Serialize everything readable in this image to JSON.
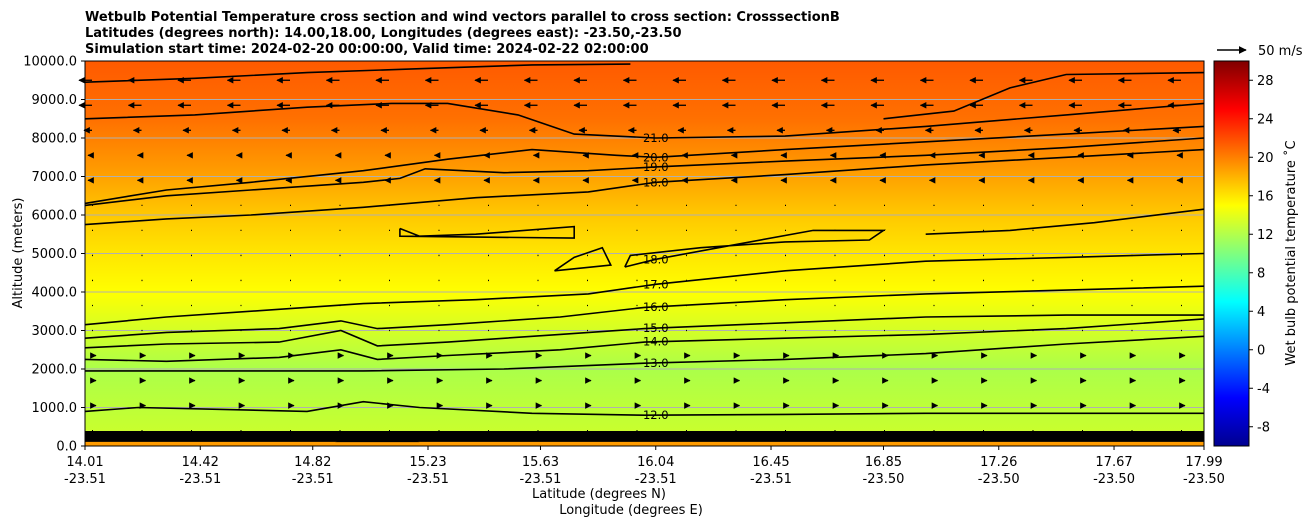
{
  "chart_data": {
    "type": "heatmap",
    "title_lines": [
      "Wetbulb Potential Temperature cross section and wind vectors parallel to cross section: CrosssectionB",
      "Latitudes (degrees north): 14.00,18.00, Longitudes (degrees east): -23.50,-23.50",
      "Simulation start time: 2024-02-20 00:00:00, Valid time: 2024-02-22 02:00:00"
    ],
    "ylabel": "Altitude (meters)",
    "xlabel_lat": "Latitude (degrees N)",
    "xlabel_lon": "Longitude (degrees E)",
    "ylim": [
      0,
      10000
    ],
    "y_ticks": [
      "0.0",
      "1000.0",
      "2000.0",
      "3000.0",
      "4000.0",
      "5000.0",
      "6000.0",
      "7000.0",
      "8000.0",
      "9000.0",
      "10000.0"
    ],
    "y_tick_values": [
      0,
      1000,
      2000,
      3000,
      4000,
      5000,
      6000,
      7000,
      8000,
      9000,
      10000
    ],
    "xlim": [
      14.01,
      17.99
    ],
    "x_tick_values": [
      14.01,
      14.42,
      14.82,
      15.23,
      15.63,
      16.04,
      16.45,
      16.85,
      17.26,
      17.67,
      17.99
    ],
    "x_tick_lat": [
      "14.01",
      "14.42",
      "14.82",
      "15.23",
      "15.63",
      "16.04",
      "16.45",
      "16.85",
      "17.26",
      "17.67",
      "17.99"
    ],
    "x_tick_lon": [
      "-23.51",
      "-23.51",
      "-23.51",
      "-23.51",
      "-23.51",
      "-23.51",
      "-23.51",
      "-23.50",
      "-23.50",
      "-23.50",
      "-23.50"
    ],
    "grid": true,
    "colorbar": {
      "label": "Wet bulb potential temperature ˚C",
      "range": [
        -10,
        30
      ],
      "ticks": [
        "-8",
        "-4",
        "0",
        "4",
        "8",
        "12",
        "16",
        "20",
        "24",
        "28"
      ],
      "tick_values": [
        -8,
        -4,
        0,
        4,
        8,
        12,
        16,
        20,
        24,
        28
      ],
      "colormap": "jet"
    },
    "reference_vector_label": "50 m/s",
    "contours": [
      {
        "level": 12,
        "label": "12.0",
        "points": [
          [
            14.01,
            900
          ],
          [
            14.2,
            1000
          ],
          [
            14.5,
            950
          ],
          [
            14.8,
            900
          ],
          [
            15.0,
            1150
          ],
          [
            15.2,
            1000
          ],
          [
            15.6,
            850
          ],
          [
            16.0,
            800
          ],
          [
            16.5,
            820
          ],
          [
            17.0,
            850
          ],
          [
            17.5,
            850
          ],
          [
            17.99,
            850
          ]
        ]
      },
      {
        "level": 13,
        "label": "13.0",
        "points": [
          [
            14.01,
            1950
          ],
          [
            14.5,
            1950
          ],
          [
            15.0,
            1950
          ],
          [
            15.5,
            2000
          ],
          [
            16.0,
            2150
          ],
          [
            16.5,
            2250
          ],
          [
            17.0,
            2400
          ],
          [
            17.5,
            2650
          ],
          [
            17.99,
            2850
          ]
        ]
      },
      {
        "level": 14,
        "label": "14.0",
        "points": [
          [
            14.01,
            2250
          ],
          [
            14.3,
            2200
          ],
          [
            14.7,
            2300
          ],
          [
            14.92,
            2500
          ],
          [
            15.05,
            2250
          ],
          [
            15.3,
            2350
          ],
          [
            15.7,
            2500
          ],
          [
            16.0,
            2700
          ],
          [
            16.5,
            2800
          ],
          [
            17.0,
            2900
          ],
          [
            17.5,
            3050
          ],
          [
            17.99,
            3300
          ]
        ]
      },
      {
        "level": 15,
        "label": "15.0",
        "points": [
          [
            14.01,
            2550
          ],
          [
            14.3,
            2650
          ],
          [
            14.7,
            2700
          ],
          [
            14.92,
            3000
          ],
          [
            15.05,
            2600
          ],
          [
            15.3,
            2700
          ],
          [
            15.7,
            2900
          ],
          [
            16.0,
            3050
          ],
          [
            16.5,
            3200
          ],
          [
            17.0,
            3350
          ],
          [
            17.5,
            3400
          ],
          [
            17.99,
            3400
          ]
        ]
      },
      {
        "level": 16,
        "label": "16.0",
        "points": [
          [
            14.01,
            2800
          ],
          [
            14.3,
            2950
          ],
          [
            14.7,
            3050
          ],
          [
            14.92,
            3250
          ],
          [
            15.05,
            3050
          ],
          [
            15.3,
            3150
          ],
          [
            15.7,
            3350
          ],
          [
            16.0,
            3600
          ],
          [
            16.5,
            3800
          ],
          [
            17.0,
            3950
          ],
          [
            17.5,
            4050
          ],
          [
            17.99,
            4150
          ]
        ]
      },
      {
        "level": 17,
        "label": "17.0",
        "points": [
          [
            14.01,
            3150
          ],
          [
            14.3,
            3350
          ],
          [
            14.7,
            3550
          ],
          [
            15.0,
            3700
          ],
          [
            15.4,
            3800
          ],
          [
            15.8,
            3950
          ],
          [
            16.04,
            4200
          ],
          [
            16.5,
            4550
          ],
          [
            17.0,
            4800
          ],
          [
            17.5,
            4900
          ],
          [
            17.99,
            5000
          ]
        ]
      },
      {
        "level": 18,
        "label": "18.0",
        "points": [
          [
            14.01,
            5750
          ],
          [
            14.3,
            5900
          ],
          [
            14.6,
            6000
          ],
          [
            15.0,
            6200
          ],
          [
            15.4,
            6450
          ],
          [
            15.8,
            6600
          ],
          [
            16.04,
            6850
          ],
          [
            16.5,
            7050
          ],
          [
            17.0,
            7300
          ],
          [
            17.5,
            7500
          ],
          [
            17.99,
            7700
          ]
        ]
      },
      {
        "level": 18,
        "label": "",
        "points": [
          [
            15.13,
            5650
          ],
          [
            15.2,
            5450
          ],
          [
            15.4,
            5500
          ],
          [
            15.75,
            5700
          ],
          [
            15.75,
            5400
          ],
          [
            15.13,
            5450
          ],
          [
            15.13,
            5650
          ]
        ]
      },
      {
        "level": 18,
        "label": "",
        "points": [
          [
            15.68,
            4550
          ],
          [
            15.75,
            4900
          ],
          [
            15.85,
            5150
          ],
          [
            15.88,
            4700
          ],
          [
            15.68,
            4550
          ]
        ]
      },
      {
        "level": 18,
        "label": "18.0",
        "points": [
          [
            15.93,
            4650
          ],
          [
            16.04,
            4850
          ],
          [
            16.3,
            5200
          ],
          [
            16.6,
            5600
          ],
          [
            16.85,
            5600
          ],
          [
            16.8,
            5350
          ],
          [
            16.5,
            5300
          ],
          [
            16.2,
            5150
          ],
          [
            15.95,
            4950
          ],
          [
            15.93,
            4650
          ]
        ]
      },
      {
        "level": 18,
        "label": "",
        "points": [
          [
            17.0,
            5500
          ],
          [
            17.3,
            5600
          ],
          [
            17.6,
            5800
          ],
          [
            17.99,
            6150
          ]
        ]
      },
      {
        "level": 19,
        "label": "19.0",
        "points": [
          [
            14.01,
            6250
          ],
          [
            14.3,
            6500
          ],
          [
            14.6,
            6650
          ],
          [
            15.0,
            6850
          ],
          [
            15.13,
            6950
          ],
          [
            15.22,
            7200
          ],
          [
            15.5,
            7100
          ],
          [
            15.8,
            7150
          ],
          [
            16.04,
            7250
          ],
          [
            16.5,
            7400
          ],
          [
            17.0,
            7550
          ],
          [
            17.5,
            7750
          ],
          [
            17.99,
            8000
          ]
        ]
      },
      {
        "level": 20,
        "label": "20.0",
        "points": [
          [
            14.01,
            6300
          ],
          [
            14.3,
            6650
          ],
          [
            14.6,
            6850
          ],
          [
            15.0,
            7150
          ],
          [
            15.3,
            7450
          ],
          [
            15.6,
            7700
          ],
          [
            15.9,
            7550
          ],
          [
            16.04,
            7500
          ],
          [
            16.5,
            7700
          ],
          [
            17.0,
            7900
          ],
          [
            17.5,
            8100
          ],
          [
            17.99,
            8300
          ]
        ]
      },
      {
        "level": 21,
        "label": "21.0",
        "points": [
          [
            14.01,
            8500
          ],
          [
            14.4,
            8600
          ],
          [
            14.8,
            8800
          ],
          [
            15.1,
            8900
          ],
          [
            15.3,
            8900
          ],
          [
            15.55,
            8600
          ],
          [
            15.75,
            8100
          ],
          [
            16.04,
            8000
          ],
          [
            16.5,
            8050
          ],
          [
            17.0,
            8300
          ],
          [
            17.5,
            8600
          ],
          [
            17.99,
            8900
          ]
        ]
      },
      {
        "level": 22,
        "label": "",
        "points": [
          [
            14.01,
            9450
          ],
          [
            14.4,
            9550
          ],
          [
            14.8,
            9700
          ],
          [
            15.2,
            9800
          ],
          [
            15.6,
            9900
          ],
          [
            15.95,
            9920
          ]
        ]
      },
      {
        "level": 22,
        "label": "",
        "points": [
          [
            16.85,
            8500
          ],
          [
            17.1,
            8700
          ],
          [
            17.3,
            9300
          ],
          [
            17.5,
            9650
          ],
          [
            17.99,
            9700
          ]
        ]
      }
    ]
  }
}
